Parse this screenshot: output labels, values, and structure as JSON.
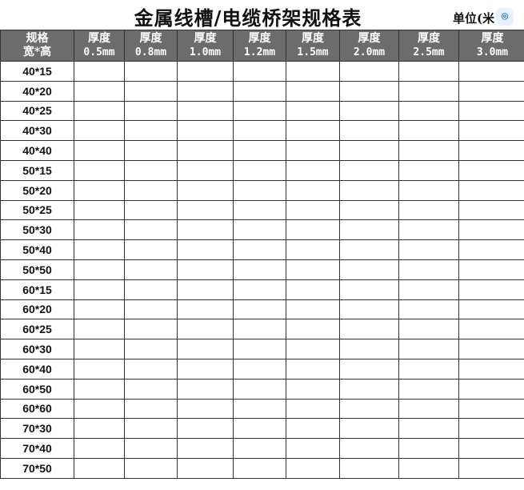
{
  "title": "金属线槽/电缆桥架规格表",
  "unit": "单位(米",
  "badge_icon": "scan-icon",
  "header": {
    "spec": [
      "规格",
      "宽*高"
    ],
    "columns": [
      {
        "label": "厚度",
        "value": "0.5mm"
      },
      {
        "label": "厚度",
        "value": "0.8mm"
      },
      {
        "label": "厚度",
        "value": "1.0mm"
      },
      {
        "label": "厚度",
        "value": "1.2mm"
      },
      {
        "label": "厚度",
        "value": "1.5mm"
      },
      {
        "label": "厚度",
        "value": "2.0mm"
      },
      {
        "label": "厚度",
        "value": "2.5mm"
      },
      {
        "label": "厚度",
        "value": "3.0mm"
      }
    ]
  },
  "rows": [
    "40*15",
    "40*20",
    "40*25",
    "40*30",
    "40*40",
    "50*15",
    "50*20",
    "50*25",
    "50*30",
    "50*40",
    "50*50",
    "60*15",
    "60*20",
    "60*25",
    "60*30",
    "60*40",
    "60*50",
    "60*60",
    "70*30",
    "70*40",
    "70*50"
  ],
  "colors": {
    "header_bg": "#6c6c6c",
    "header_text": "#ffffff",
    "grid": "#333333"
  }
}
